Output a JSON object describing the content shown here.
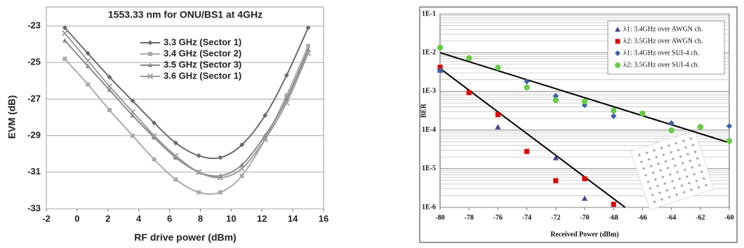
{
  "chart_data": [
    {
      "type": "line",
      "title": "1553.33 nm for ONU/BS1 at 4GHz",
      "x_label": "RF drive power (dBm)",
      "y_label": "EVM (dB)",
      "x": [
        -0.8,
        0.7,
        2.1,
        3.6,
        5.0,
        6.4,
        7.9,
        9.3,
        10.7,
        12.2,
        13.6,
        15.0
      ],
      "series": [
        {
          "name": "3.3 GHz (Sector 1)",
          "color": "#6a6a6a",
          "marker": "diamond",
          "values": [
            -23.1,
            -24.5,
            -25.8,
            -27.1,
            -28.3,
            -29.4,
            -30.1,
            -30.2,
            -29.5,
            -27.9,
            -25.7,
            -23.1
          ]
        },
        {
          "name": "3.4 GHz (Sector 2)",
          "color": "#ababab",
          "marker": "square",
          "values": [
            -24.8,
            -26.2,
            -27.6,
            -29.0,
            -30.3,
            -31.4,
            -32.1,
            -32.1,
            -31.2,
            -29.2,
            -26.8,
            -24.1
          ]
        },
        {
          "name": "3.5 GHz (Sector 3)",
          "color": "#8a8a8a",
          "marker": "triangle",
          "values": [
            -23.8,
            -25.2,
            -26.5,
            -27.9,
            -29.1,
            -30.2,
            -31.0,
            -31.2,
            -30.6,
            -29.0,
            -27.0,
            -24.3
          ]
        },
        {
          "name": "3.6 GHz (Sector 1)",
          "color": "#9c9c9c",
          "marker": "x",
          "values": [
            -23.4,
            -24.9,
            -26.3,
            -27.7,
            -29.0,
            -30.1,
            -31.0,
            -31.3,
            -30.8,
            -29.2,
            -27.2,
            -24.5
          ]
        }
      ],
      "xlim": [
        -2,
        16
      ],
      "xticks": [
        -2,
        0,
        2,
        4,
        6,
        8,
        10,
        12,
        14,
        16
      ],
      "ylim": [
        -33,
        -23
      ],
      "yticks": [
        -33,
        -31,
        -29,
        -27,
        -25,
        -23
      ],
      "grid": true,
      "legend": "upper center"
    },
    {
      "type": "scatter",
      "x_label": "Received Power (dBm)",
      "y_label": "BER",
      "log_y": true,
      "grid": "minor",
      "legend": "upper right",
      "series": [
        {
          "name": "λ1: 3.4GHz over AWGN ch.",
          "color": "#4b3f8f",
          "marker": "triangle",
          "x": [
            -80,
            -76,
            -72,
            -70
          ],
          "values": [
            0.0035,
            0.00012,
            1.9e-05,
            1.7e-06
          ]
        },
        {
          "name": "λ2: 3.5GHz over AWGN ch.",
          "color": "#e00000",
          "marker": "square",
          "x": [
            -80,
            -78,
            -76,
            -74,
            -72,
            -70,
            -68
          ],
          "values": [
            0.0042,
            0.00093,
            0.00025,
            2.8e-05,
            4.9e-06,
            5.5e-06,
            1.2e-06
          ]
        },
        {
          "name": "λ1: 3.4GHz over SUI-4 ch.",
          "color": "#3a5fa8",
          "marker": "diamond",
          "x": [
            -80,
            -74,
            -72,
            -70,
            -68,
            -64,
            -60
          ],
          "values": [
            0.0035,
            0.0018,
            0.00076,
            0.00044,
            0.00023,
            0.00015,
            0.000126
          ]
        },
        {
          "name": "λ2: 3.5GHz over SUI-4 ch.",
          "color": "#66cc44",
          "marker": "circle",
          "x": [
            -80,
            -78,
            -76,
            -74,
            -72,
            -70,
            -68,
            -66,
            -64,
            -62,
            -60
          ],
          "values": [
            0.0135,
            0.0072,
            0.0041,
            0.00126,
            0.00059,
            0.00055,
            0.00032,
            0.00027,
            9.8e-05,
            0.00012,
            5.2e-05
          ]
        }
      ],
      "trend_lines": [
        {
          "color": "#000000",
          "x": [
            -80,
            -60
          ],
          "values": [
            0.01,
            4.7e-05
          ]
        },
        {
          "color": "#000000",
          "x": [
            -80,
            -67.2
          ],
          "values": [
            0.0039,
            1e-06
          ]
        }
      ],
      "xlim": [
        -80,
        -60
      ],
      "xticks": [
        -80,
        -78,
        -76,
        -74,
        -72,
        -70,
        -68,
        -66,
        -64,
        -62,
        -60
      ],
      "ylim": [
        1e-06,
        0.1
      ],
      "yticks": [
        {
          "value": 1e-06,
          "label": "1E-6"
        },
        {
          "value": 1e-05,
          "label": "1E-5"
        },
        {
          "value": 0.0001,
          "label": "1E-4"
        },
        {
          "value": 0.001,
          "label": "1E-3"
        },
        {
          "value": 0.01,
          "label": "1E-2"
        },
        {
          "value": 0.1,
          "label": "1E-1"
        }
      ]
    }
  ]
}
